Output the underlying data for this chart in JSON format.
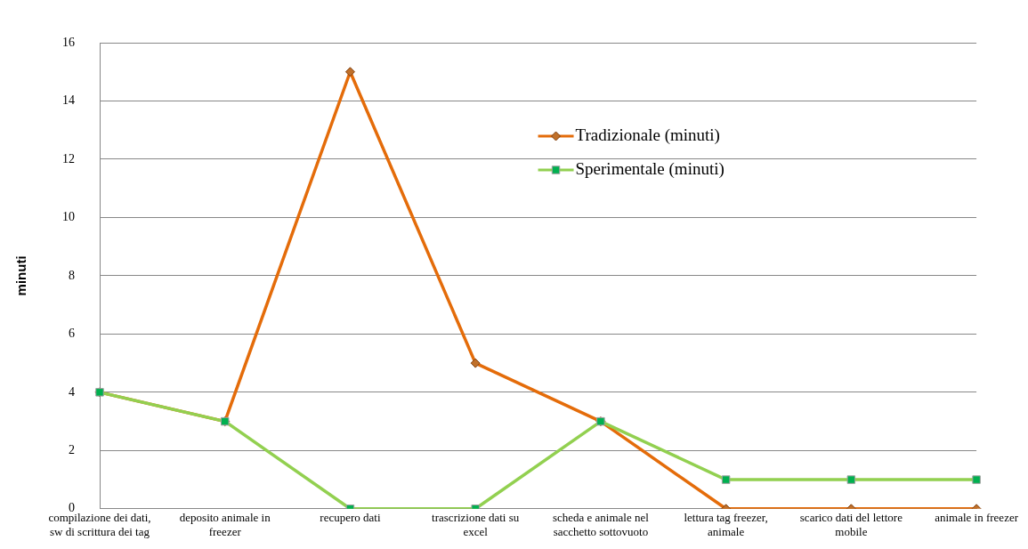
{
  "chart_data": {
    "type": "line",
    "ylabel": "minuti",
    "categories": [
      "compilazione dei dati, sw di scrittura dei tag",
      "deposito animale in freezer",
      "recupero dati",
      "trascrizione dati su excel",
      "scheda e animale nel sacchetto sottovuoto",
      "lettura tag freezer, animale",
      "scarico dati del lettore mobile",
      "animale in freezer"
    ],
    "series": [
      {
        "name": "Tradizionale (minuti)",
        "color": "#e46c0a",
        "marker": "diamond",
        "values": [
          4,
          3,
          15,
          5,
          3,
          0,
          0,
          0
        ]
      },
      {
        "name": "Sperimentale (minuti)",
        "color": "#92d050",
        "marker": "square",
        "values": [
          4,
          3,
          0,
          0,
          3,
          1,
          1,
          1
        ]
      }
    ],
    "ylim": [
      0,
      16
    ],
    "yticks": [
      0,
      2,
      4,
      6,
      8,
      10,
      12,
      14,
      16
    ],
    "grid": "y",
    "legend": "top right"
  }
}
